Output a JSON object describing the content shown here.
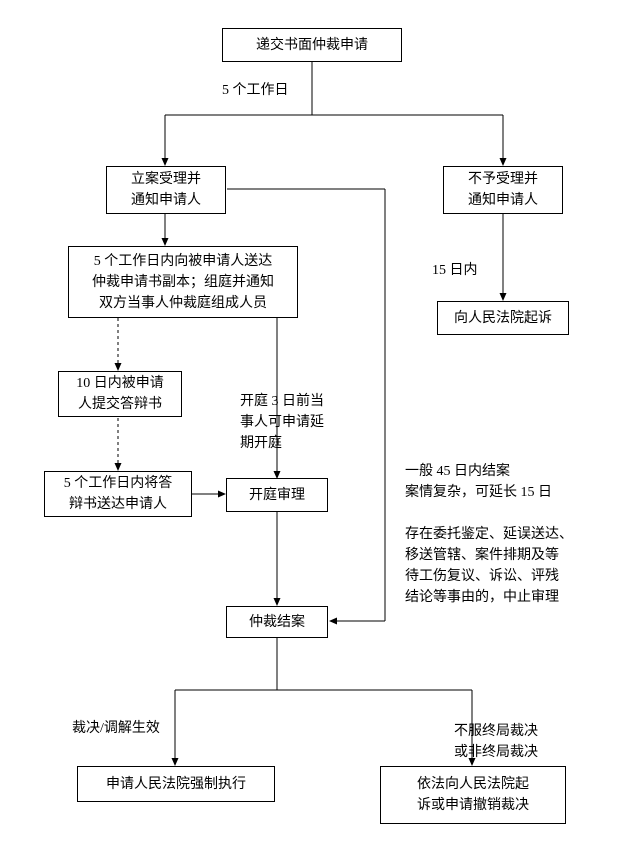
{
  "diagram": {
    "type": "flowchart",
    "background_color": "#ffffff",
    "border_color": "#000000",
    "font_size": 14,
    "nodes": {
      "n1": {
        "text": "递交书面仲裁申请"
      },
      "n2": {
        "text": "立案受理并\n通知申请人"
      },
      "n3": {
        "text": "不予受理并\n通知申请人"
      },
      "n4": {
        "text": "5 个工作日内向被申请人送达\n仲裁申请书副本；组庭并通知\n双方当事人仲裁庭组成人员"
      },
      "n5": {
        "text": "向人民法院起诉"
      },
      "n6": {
        "text": "10 日内被申请\n人提交答辩书"
      },
      "n7": {
        "text": "5 个工作日内将答\n辩书送达申请人"
      },
      "n8": {
        "text": "开庭审理"
      },
      "n9": {
        "text": "仲裁结案"
      },
      "n10": {
        "text": "申请人民法院强制执行"
      },
      "n11": {
        "text": "依法向人民法院起\n诉或申请撤销裁决"
      }
    },
    "edge_labels": {
      "l1": "5 个工作日",
      "l2": "15 日内",
      "l3": "开庭 3 日前当\n事人可申请延\n期开庭",
      "l4": "一般 45 日内结案\n案情复杂，可延长 15 日\n\n存在委托鉴定、延误送达、\n移送管辖、案件排期及等\n待工伤复议、诉讼、评残\n结论等事由的，中止审理",
      "l5": "裁决/调解生效",
      "l6": "不服终局裁决\n或非终局裁决"
    }
  }
}
